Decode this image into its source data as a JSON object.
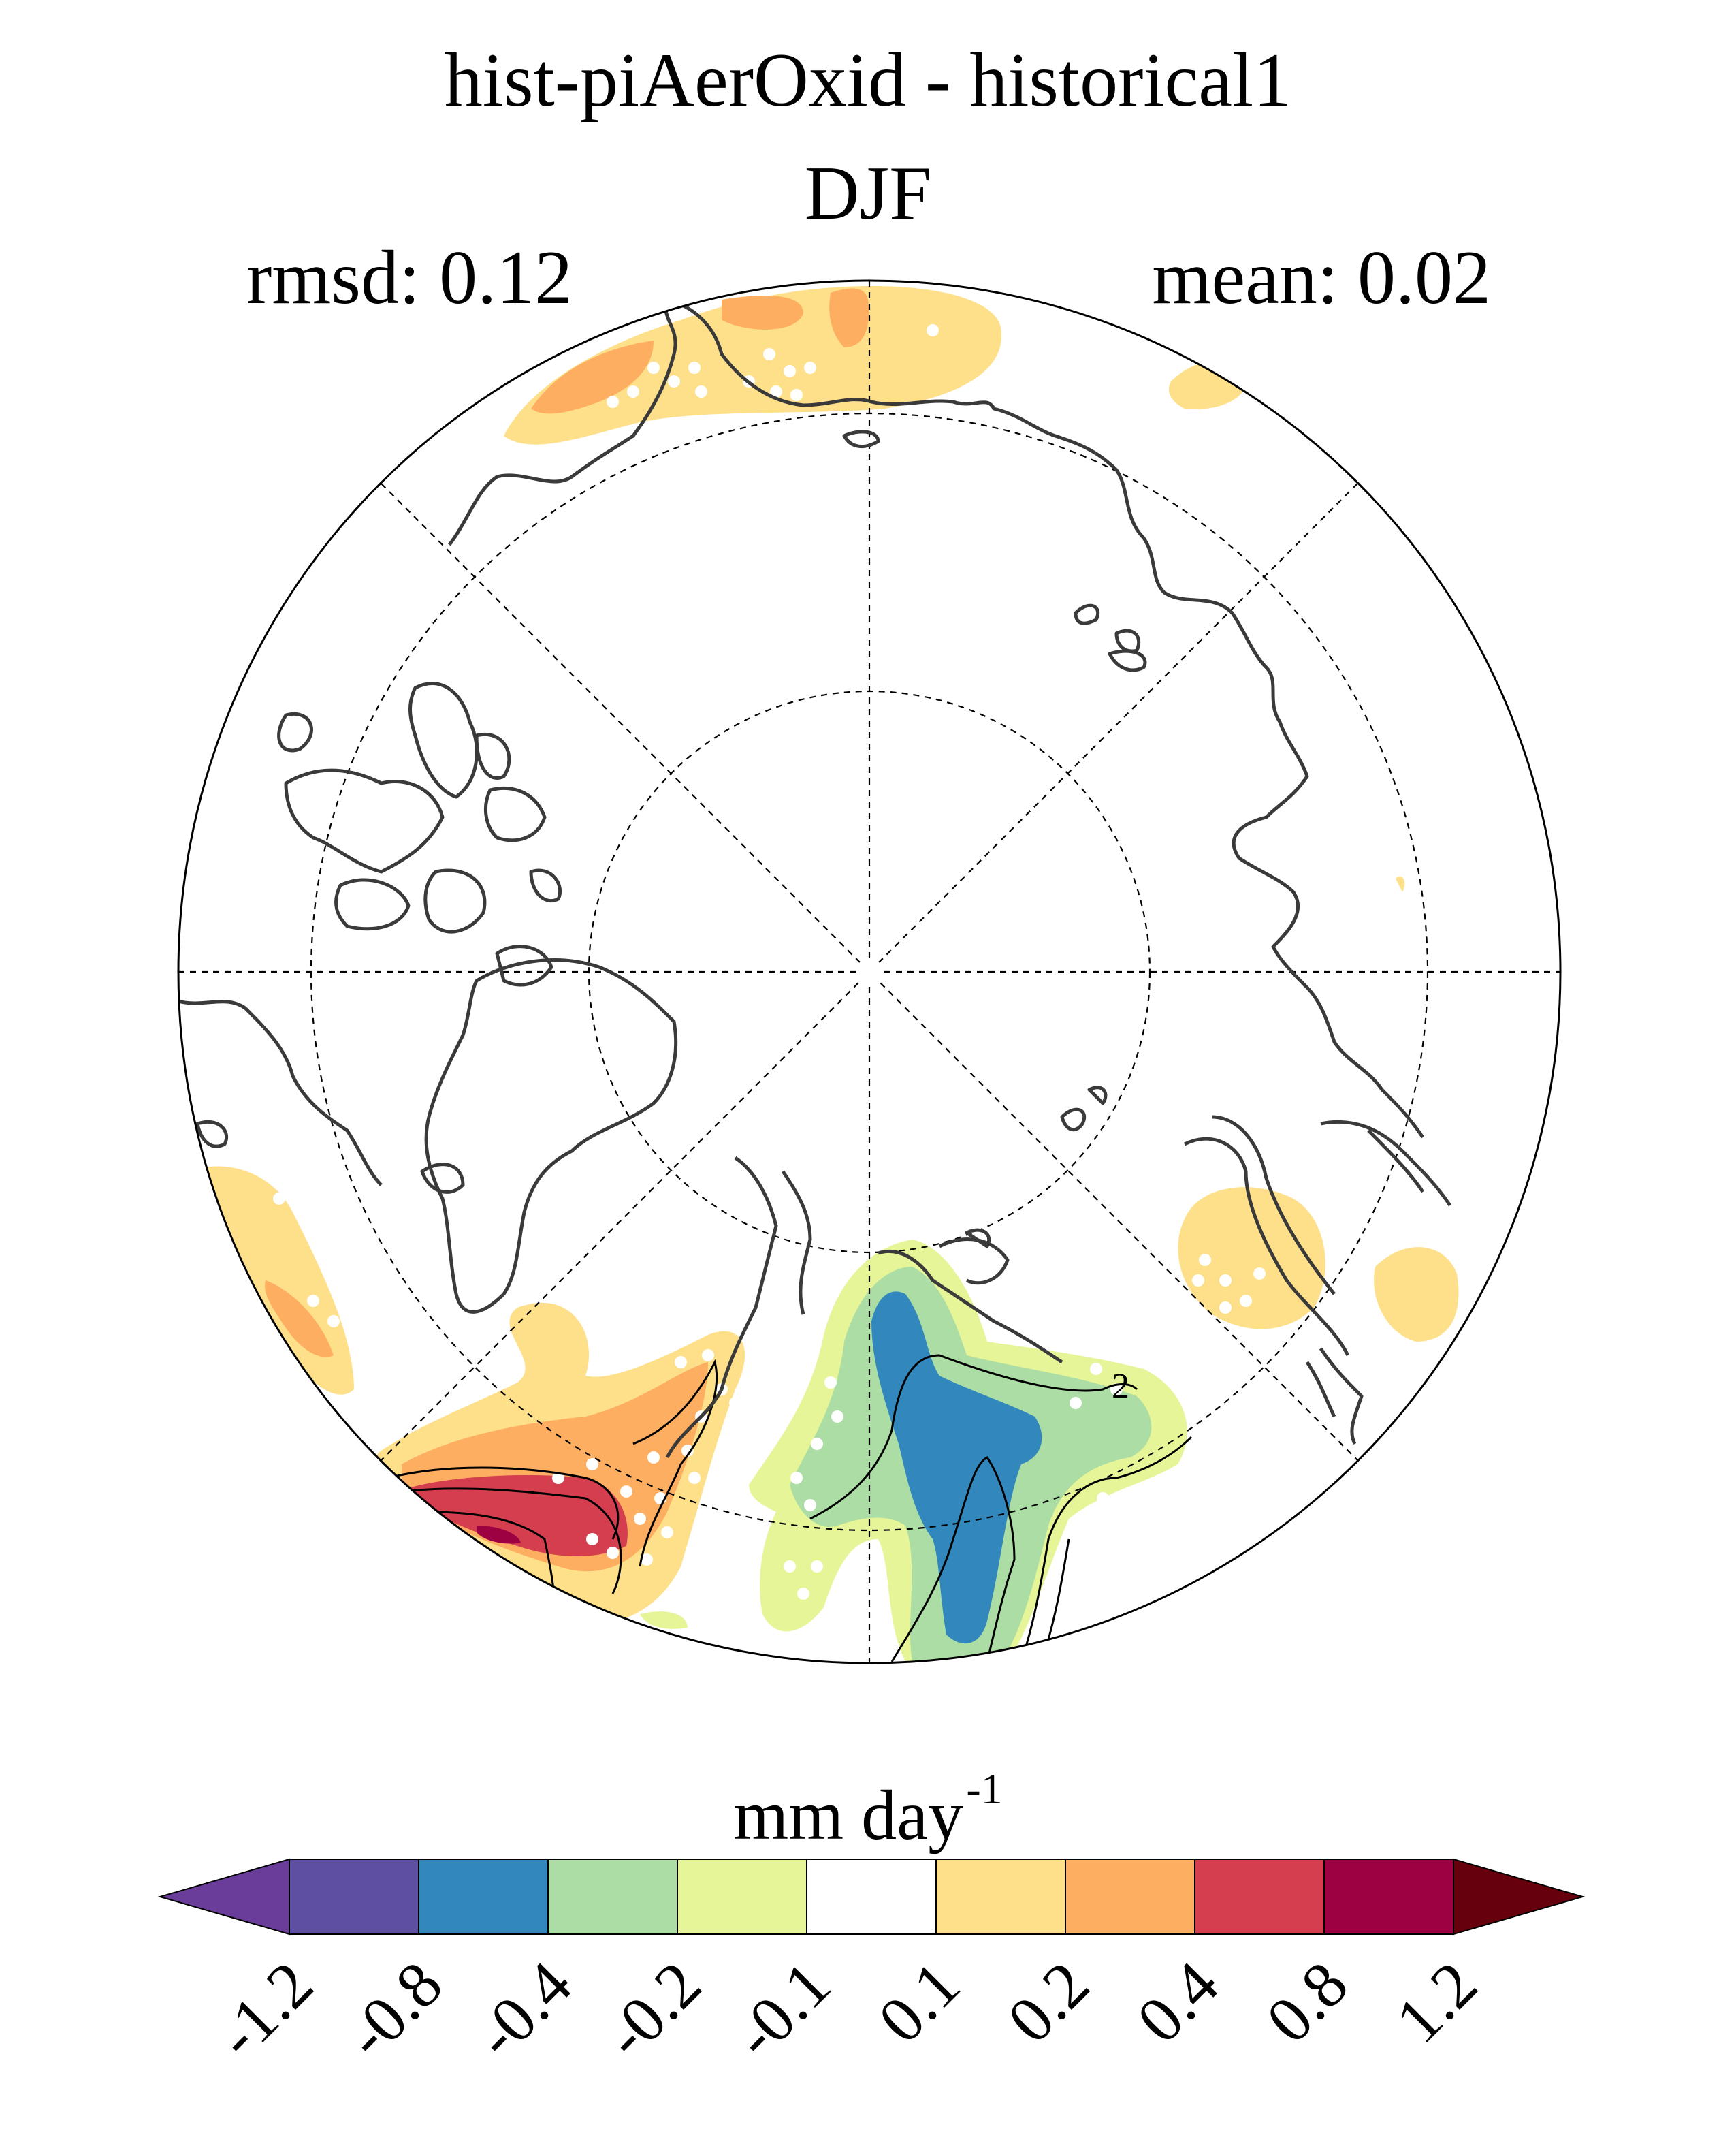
{
  "title": "hist-piAerOxid - historical1",
  "season": "DJF",
  "stats": {
    "rmsd_label": "rmsd: 0.12",
    "mean_label": "mean: 0.02"
  },
  "colorbar": {
    "units_base": "mm day",
    "units_exp": "-1",
    "ticks": [
      "-1.2",
      "-0.8",
      "-0.4",
      "-0.2",
      "-0.1",
      "0.1",
      "0.2",
      "0.4",
      "0.8",
      "1.2"
    ],
    "colors": [
      "#6a3d9a",
      "#5e4fa2",
      "#3288bd",
      "#abdda4",
      "#e6f598",
      "#ffffff",
      "#fee08b",
      "#fdae61",
      "#d53e4f",
      "#9e0142",
      "#67000d"
    ],
    "extend": "both"
  },
  "map": {
    "projection": "north-polar-stereographic",
    "contour_label": "2",
    "fill_colors": {
      "c_01_02": "#fee08b",
      "c_02_04": "#fdae61",
      "c_04_08": "#d53e4f",
      "c_08_12": "#9e0142",
      "c_m01_m02": "#e6f598",
      "c_m02_m04": "#abdda4",
      "c_m04_m08": "#3288bd"
    },
    "coast_color": "#3a3a3a",
    "significance_marker": "white-dot"
  }
}
